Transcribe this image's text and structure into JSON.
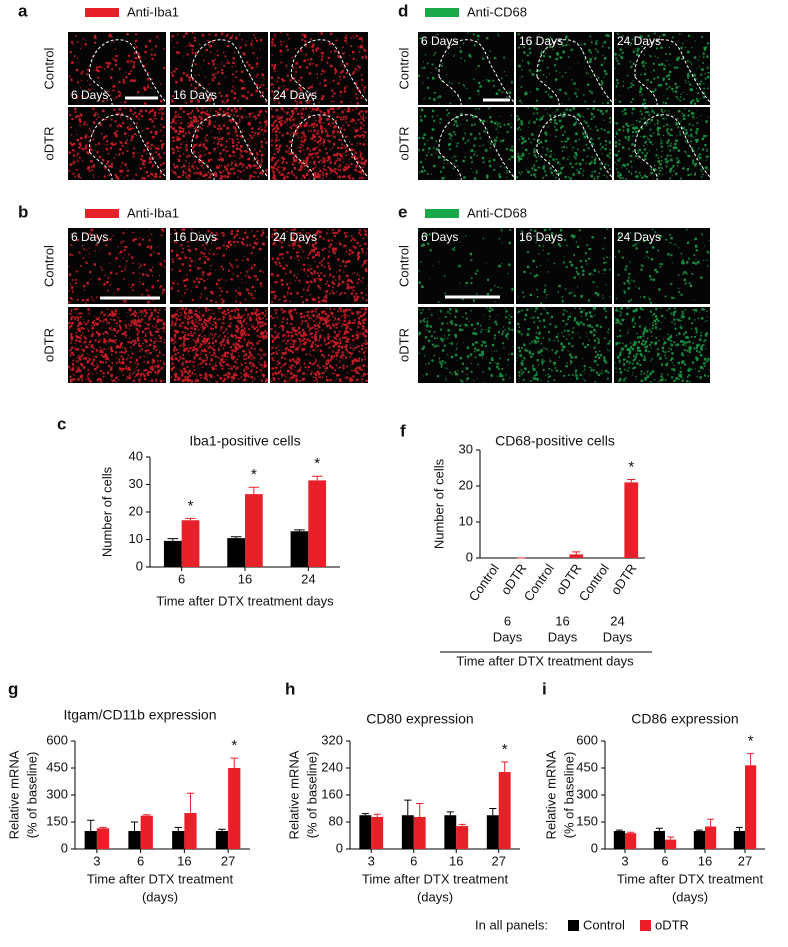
{
  "panels": {
    "a": {
      "letter": "a",
      "stain": "Anti-Iba1",
      "stain_color": "#e8202a",
      "rows": [
        "Control",
        "oDTR"
      ],
      "columns": [
        "6 Days",
        "16 Days",
        "24 Days"
      ]
    },
    "b": {
      "letter": "b",
      "stain": "Anti-Iba1",
      "stain_color": "#e8202a",
      "rows": [
        "Control",
        "oDTR"
      ],
      "columns": [
        "6 Days",
        "16 Days",
        "24 Days"
      ]
    },
    "d": {
      "letter": "d",
      "stain": "Anti-CD68",
      "stain_color": "#1aa84a",
      "rows": [
        "Control",
        "oDTR"
      ],
      "columns": [
        "6 Days",
        "16 Days",
        "24 Days"
      ]
    },
    "e": {
      "letter": "e",
      "stain": "Anti-CD68",
      "stain_color": "#1aa84a",
      "rows": [
        "Control",
        "oDTR"
      ],
      "columns": [
        "6 Days",
        "16 Days",
        "24 Days"
      ]
    }
  },
  "chart_data": [
    {
      "type": "bar",
      "letter": "c",
      "title": "Iba1-positive cells",
      "ylabel": [
        "Number of cells"
      ],
      "xlabel": [
        "Time after DTX treatment days"
      ],
      "categories": [
        "6",
        "16",
        "24"
      ],
      "series": [
        {
          "name": "Control",
          "color": "#000000",
          "values": [
            9.5,
            10.5,
            13
          ],
          "errors": [
            0.8,
            0.5,
            0.5
          ]
        },
        {
          "name": "oDTR",
          "color": "#e8202a",
          "values": [
            17,
            26.5,
            31.5
          ],
          "errors": [
            0.7,
            2.5,
            1.5
          ]
        }
      ],
      "ylim": [
        0,
        40
      ],
      "yticks": [
        0,
        10,
        20,
        30,
        40
      ],
      "annotations": [
        {
          "text": "*",
          "series": 1,
          "index": 0
        },
        {
          "text": "*",
          "series": 1,
          "index": 1
        },
        {
          "text": "*",
          "series": 1,
          "index": 2
        }
      ]
    },
    {
      "type": "bar",
      "letter": "f",
      "title": "CD68-positive cells",
      "ylabel": [
        "Number of cells"
      ],
      "xlabel": [
        "Time after DTX treatment days"
      ],
      "categories": [
        "Control",
        "oDTR",
        "Control",
        "oDTR",
        "Control",
        "oDTR"
      ],
      "group_labels": [
        [
          "6",
          "Days"
        ],
        [
          "16",
          "Days"
        ],
        [
          "24",
          "Days"
        ]
      ],
      "values": [
        0,
        0,
        0,
        1,
        0,
        21
      ],
      "errors": [
        0,
        0,
        0,
        0.7,
        0,
        0.8
      ],
      "colors": [
        "#000000",
        "#e8202a",
        "#000000",
        "#e8202a",
        "#000000",
        "#e8202a"
      ],
      "ylim": [
        0,
        30
      ],
      "yticks": [
        0,
        10,
        20,
        30
      ],
      "annotations": [
        {
          "text": "*",
          "index": 5
        }
      ]
    },
    {
      "type": "bar",
      "letter": "g",
      "title": "Itgam/CD11b expression",
      "ylabel": [
        "Relative mRNA",
        "(% of baseline)"
      ],
      "xlabel": [
        "Time after DTX treatment",
        "(days)"
      ],
      "categories": [
        "3",
        "6",
        "16",
        "27"
      ],
      "series": [
        {
          "name": "Control",
          "color": "#000000",
          "values": [
            100,
            100,
            100,
            100
          ],
          "errors": [
            60,
            50,
            20,
            10
          ]
        },
        {
          "name": "oDTR",
          "color": "#e8202a",
          "values": [
            115,
            185,
            200,
            450
          ],
          "errors": [
            5,
            5,
            110,
            55
          ]
        }
      ],
      "ylim": [
        0,
        600
      ],
      "yticks": [
        0,
        150,
        300,
        450,
        600
      ],
      "annotations": [
        {
          "text": "*",
          "series": 1,
          "index": 3
        }
      ]
    },
    {
      "type": "bar",
      "letter": "h",
      "title": "CD80 expression",
      "ylabel": [
        "Relative mRNA",
        "(% of baseline)"
      ],
      "xlabel": [
        "Time after DTX treatment",
        "(days)"
      ],
      "categories": [
        "3",
        "6",
        "16",
        "27"
      ],
      "series": [
        {
          "name": "Control",
          "color": "#000000",
          "values": [
            100,
            100,
            100,
            100
          ],
          "errors": [
            5,
            45,
            10,
            20
          ]
        },
        {
          "name": "oDTR",
          "color": "#e8202a",
          "values": [
            95,
            95,
            68,
            228
          ],
          "errors": [
            8,
            40,
            5,
            30
          ]
        }
      ],
      "ylim": [
        0,
        320
      ],
      "yticks": [
        0,
        80,
        160,
        240,
        320
      ],
      "annotations": [
        {
          "text": "*",
          "series": 1,
          "index": 3
        }
      ]
    },
    {
      "type": "bar",
      "letter": "i",
      "title": "CD86 expression",
      "ylabel": [
        "Relative mRNA",
        "(% of baseline)"
      ],
      "xlabel": [
        "Time after DTX treatment",
        "(days)"
      ],
      "categories": [
        "3",
        "6",
        "16",
        "27"
      ],
      "series": [
        {
          "name": "Control",
          "color": "#000000",
          "values": [
            100,
            100,
            100,
            100
          ],
          "errors": [
            5,
            15,
            5,
            20
          ]
        },
        {
          "name": "oDTR",
          "color": "#e8202a",
          "values": [
            88,
            52,
            125,
            465
          ],
          "errors": [
            5,
            15,
            40,
            65
          ]
        }
      ],
      "ylim": [
        0,
        600
      ],
      "yticks": [
        0,
        150,
        300,
        450,
        600
      ],
      "annotations": [
        {
          "text": "*",
          "series": 1,
          "index": 3
        }
      ]
    }
  ],
  "footer": {
    "prefix": "In all panels:",
    "items": [
      {
        "name": "Control",
        "color": "#000000"
      },
      {
        "name": "oDTR",
        "color": "#e8202a"
      }
    ]
  }
}
